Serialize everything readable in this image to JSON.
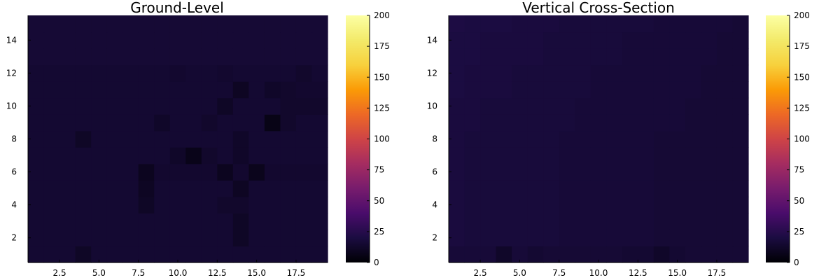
{
  "chart_data": [
    {
      "type": "heatmap",
      "title": "Ground-Level",
      "xlabel": "",
      "ylabel": "",
      "x_ticks": [
        2.5,
        5.0,
        7.5,
        10.0,
        12.5,
        15.0,
        17.5
      ],
      "x_tick_labels": [
        "2.5",
        "5.0",
        "7.5",
        "10.0",
        "12.5",
        "15.0",
        "17.5"
      ],
      "y_ticks": [
        2,
        4,
        6,
        8,
        10,
        12,
        14
      ],
      "y_tick_labels": [
        "2",
        "4",
        "6",
        "8",
        "10",
        "12",
        "14"
      ],
      "xlim": [
        0.5,
        19.5
      ],
      "ylim": [
        0.5,
        15.5
      ],
      "colorbar": {
        "colormap": "inferno",
        "limits": [
          0,
          200
        ],
        "ticks": [
          0,
          25,
          50,
          75,
          100,
          125,
          150,
          175,
          200
        ],
        "tick_labels": [
          "0",
          "25",
          "50",
          "75",
          "100",
          "125",
          "150",
          "175",
          "200"
        ]
      },
      "columns": [
        1,
        2,
        3,
        4,
        5,
        6,
        7,
        8,
        9,
        10,
        11,
        12,
        13,
        14,
        15,
        16,
        17,
        18,
        19
      ],
      "rows": [
        1,
        2,
        3,
        4,
        5,
        6,
        7,
        8,
        9,
        10,
        11,
        12,
        13,
        14,
        15
      ],
      "values_by_row_bottom_to_top": [
        [
          15,
          15,
          15,
          11,
          15,
          15,
          15,
          15,
          15,
          15,
          15,
          15,
          15,
          15,
          15,
          15,
          15,
          15,
          15
        ],
        [
          15,
          15,
          15,
          15,
          15,
          15,
          15,
          15,
          15,
          15,
          15,
          15,
          15,
          11,
          15,
          15,
          15,
          15,
          15
        ],
        [
          15,
          15,
          15,
          15,
          15,
          15,
          15,
          15,
          15,
          15,
          15,
          15,
          15,
          11,
          15,
          15,
          15,
          15,
          15
        ],
        [
          15,
          15,
          15,
          15,
          15,
          15,
          15,
          11,
          15,
          15,
          15,
          15,
          13,
          13,
          15,
          15,
          15,
          15,
          15
        ],
        [
          15,
          15,
          15,
          15,
          15,
          15,
          15,
          10,
          15,
          15,
          15,
          15,
          15,
          10,
          15,
          15,
          15,
          15,
          15
        ],
        [
          15,
          15,
          15,
          15,
          15,
          15,
          15,
          9,
          14,
          14,
          14,
          14,
          9,
          14,
          8,
          14,
          14,
          14,
          14
        ],
        [
          15,
          15,
          15,
          15,
          15,
          15,
          15,
          15,
          15,
          12,
          7,
          13,
          15,
          12,
          15,
          15,
          15,
          15,
          15
        ],
        [
          15,
          15,
          15,
          11,
          15,
          15,
          15,
          15,
          15,
          15,
          15,
          15,
          15,
          12,
          15,
          15,
          15,
          15,
          15
        ],
        [
          15,
          15,
          15,
          15,
          15,
          15,
          15,
          15,
          12,
          15,
          15,
          13,
          15,
          15,
          15,
          6,
          13,
          15,
          15
        ],
        [
          15,
          15,
          15,
          15,
          15,
          15,
          15,
          15,
          15,
          15,
          15,
          15,
          11,
          15,
          15,
          15,
          13,
          13,
          13
        ],
        [
          15,
          15,
          15,
          15,
          15,
          15,
          15,
          15,
          15,
          15,
          15,
          15,
          15,
          10,
          15,
          12,
          13,
          14,
          14
        ],
        [
          15,
          15,
          15,
          15,
          15,
          15,
          15,
          15,
          15,
          14,
          15,
          15,
          14,
          15,
          15,
          15,
          15,
          13,
          15
        ],
        [
          16,
          16,
          16,
          16,
          16,
          16,
          16,
          16,
          16,
          16,
          16,
          16,
          16,
          16,
          16,
          16,
          16,
          16,
          16
        ],
        [
          16,
          16,
          16,
          16,
          16,
          16,
          16,
          16,
          16,
          16,
          16,
          16,
          16,
          16,
          16,
          16,
          16,
          16,
          16
        ],
        [
          16,
          16,
          16,
          16,
          16,
          16,
          16,
          16,
          16,
          16,
          16,
          16,
          16,
          16,
          16,
          16,
          16,
          16,
          16
        ]
      ]
    },
    {
      "type": "heatmap",
      "title": "Vertical Cross-Section",
      "xlabel": "",
      "ylabel": "",
      "x_ticks": [
        2.5,
        5.0,
        7.5,
        10.0,
        12.5,
        15.0,
        17.5
      ],
      "x_tick_labels": [
        "2.5",
        "5.0",
        "7.5",
        "10.0",
        "12.5",
        "15.0",
        "17.5"
      ],
      "y_ticks": [
        2,
        4,
        6,
        8,
        10,
        12,
        14
      ],
      "y_tick_labels": [
        "2",
        "4",
        "6",
        "8",
        "10",
        "12",
        "14"
      ],
      "xlim": [
        0.5,
        19.5
      ],
      "ylim": [
        0.5,
        15.5
      ],
      "colorbar": {
        "colormap": "inferno",
        "limits": [
          0,
          200
        ],
        "ticks": [
          0,
          25,
          50,
          75,
          100,
          125,
          150,
          175,
          200
        ],
        "tick_labels": [
          "0",
          "25",
          "50",
          "75",
          "100",
          "125",
          "150",
          "175",
          "200"
        ]
      },
      "columns": [
        1,
        2,
        3,
        4,
        5,
        6,
        7,
        8,
        9,
        10,
        11,
        12,
        13,
        14,
        15,
        16,
        17,
        18,
        19
      ],
      "rows": [
        1,
        2,
        3,
        4,
        5,
        6,
        7,
        8,
        9,
        10,
        11,
        12,
        13,
        14,
        15
      ],
      "values_by_row_bottom_to_top": [
        [
          17,
          17,
          17,
          12,
          17,
          15,
          16,
          16,
          16,
          16,
          16,
          15,
          15,
          12,
          15,
          16,
          16,
          16,
          16
        ],
        [
          19,
          18,
          18,
          18,
          18,
          18,
          18,
          17,
          17,
          17,
          17,
          17,
          17,
          16,
          16,
          16,
          16,
          16,
          16
        ],
        [
          19,
          18,
          18,
          18,
          18,
          18,
          18,
          17,
          17,
          17,
          17,
          17,
          17,
          16,
          16,
          16,
          16,
          16,
          16
        ],
        [
          19,
          18,
          18,
          18,
          18,
          18,
          18,
          17,
          17,
          17,
          17,
          17,
          17,
          16,
          16,
          16,
          16,
          16,
          16
        ],
        [
          19,
          18,
          18,
          18,
          18,
          18,
          18,
          17,
          17,
          17,
          17,
          17,
          17,
          16,
          16,
          16,
          16,
          16,
          16
        ],
        [
          19,
          18,
          18,
          18,
          18,
          18,
          18,
          17,
          17,
          17,
          17,
          17,
          17,
          16,
          16,
          16,
          16,
          16,
          16
        ],
        [
          19,
          18,
          18,
          18,
          18,
          18,
          18,
          17,
          17,
          17,
          17,
          17,
          17,
          16,
          16,
          16,
          16,
          16,
          16
        ],
        [
          19,
          18,
          18,
          18,
          18,
          18,
          18,
          17,
          17,
          17,
          17,
          17,
          17,
          16,
          16,
          16,
          16,
          16,
          16
        ],
        [
          19,
          19,
          18,
          18,
          18,
          18,
          18,
          18,
          17,
          17,
          17,
          17,
          17,
          17,
          17,
          16,
          16,
          16,
          16
        ],
        [
          19,
          19,
          18,
          18,
          18,
          18,
          18,
          18,
          17,
          17,
          17,
          17,
          17,
          17,
          17,
          16,
          16,
          16,
          16
        ],
        [
          20,
          19,
          19,
          19,
          18,
          18,
          18,
          18,
          18,
          17,
          17,
          17,
          17,
          17,
          17,
          17,
          16,
          16,
          16
        ],
        [
          20,
          19,
          19,
          19,
          18,
          18,
          18,
          18,
          18,
          17,
          17,
          17,
          17,
          17,
          17,
          17,
          16,
          16,
          16
        ],
        [
          20,
          20,
          19,
          19,
          19,
          19,
          18,
          18,
          18,
          18,
          18,
          17,
          17,
          17,
          17,
          17,
          17,
          16,
          16
        ],
        [
          20,
          20,
          19,
          19,
          19,
          19,
          18,
          18,
          18,
          18,
          18,
          17,
          17,
          17,
          17,
          17,
          17,
          16,
          16
        ],
        [
          21,
          20,
          20,
          20,
          19,
          19,
          19,
          18,
          18,
          18,
          18,
          18,
          18,
          17,
          17,
          17,
          17,
          17,
          16
        ]
      ]
    }
  ]
}
